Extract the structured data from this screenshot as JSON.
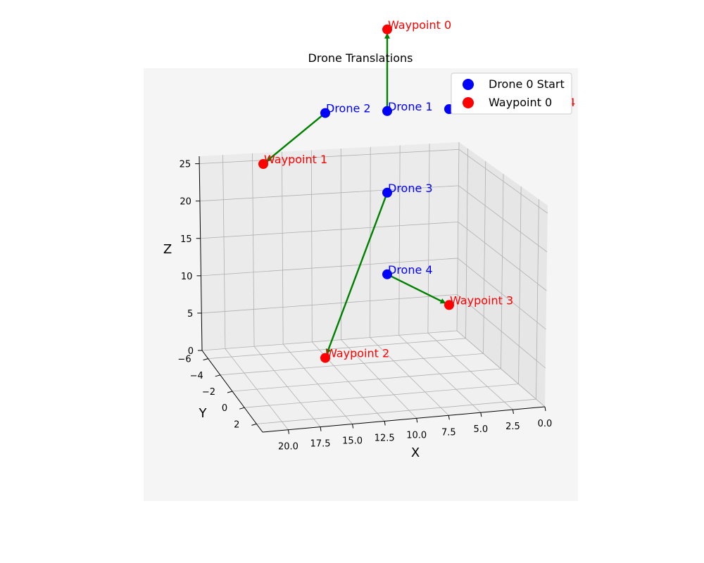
{
  "chart_data": {
    "type": "scatter3d",
    "title": "Drone Translations",
    "xlabel": "X",
    "ylabel": "Y",
    "zlabel": "Z",
    "xlim": [
      0,
      22
    ],
    "ylim": [
      -7,
      3
    ],
    "zlim": [
      0,
      25
    ],
    "x_ticks": [
      "0.0",
      "2.5",
      "5.0",
      "7.5",
      "10.0",
      "12.5",
      "15.0",
      "17.5",
      "20.0"
    ],
    "y_ticks": [
      "−6",
      "−4",
      "−2",
      "0",
      "2"
    ],
    "z_ticks": [
      "0",
      "5",
      "10",
      "15",
      "20",
      "25"
    ],
    "grid": true,
    "legend_position": "top-right",
    "legend": [
      {
        "label": "Drone 0 Start",
        "color": "#0000ff"
      },
      {
        "label": "Waypoint 0",
        "color": "#ff0000"
      }
    ],
    "drones": [
      {
        "label": "Drone 0",
        "x": 0,
        "y": 0,
        "z": 15
      },
      {
        "label": "Drone 1",
        "x": 5,
        "y": 0,
        "z": 15
      },
      {
        "label": "Drone 2",
        "x": 10,
        "y": 0,
        "z": 15
      },
      {
        "label": "Drone 3",
        "x": 5,
        "y": 0,
        "z": 10
      },
      {
        "label": "Drone 4",
        "x": 5,
        "y": 0,
        "z": 5
      }
    ],
    "waypoints": [
      {
        "label": "Waypoint 0",
        "x": 5,
        "y": 0,
        "z": 20
      },
      {
        "label": "Waypoint 1",
        "x": 15,
        "y": 0,
        "z": 12
      },
      {
        "label": "Waypoint 2",
        "x": 10,
        "y": 0,
        "z": 0
      },
      {
        "label": "Waypoint 3",
        "x": 0,
        "y": 0,
        "z": 3
      },
      {
        "label": "Waypoint 4",
        "x": -5,
        "y": 0,
        "z": 15
      }
    ],
    "translations": [
      {
        "from": "Drone 1",
        "to": "Waypoint 0"
      },
      {
        "from": "Drone 2",
        "to": "Waypoint 1"
      },
      {
        "from": "Drone 3",
        "to": "Waypoint 2"
      },
      {
        "from": "Drone 4",
        "to": "Waypoint 3"
      },
      {
        "from": "Drone 0",
        "to": "Waypoint 4"
      }
    ],
    "colors": {
      "drone": "#0000ff",
      "waypoint": "#ff0000",
      "arrow": "#008000",
      "panel": "#f5f5f5",
      "pane": "#ebebeb",
      "grid": "#b0b0b0"
    }
  }
}
